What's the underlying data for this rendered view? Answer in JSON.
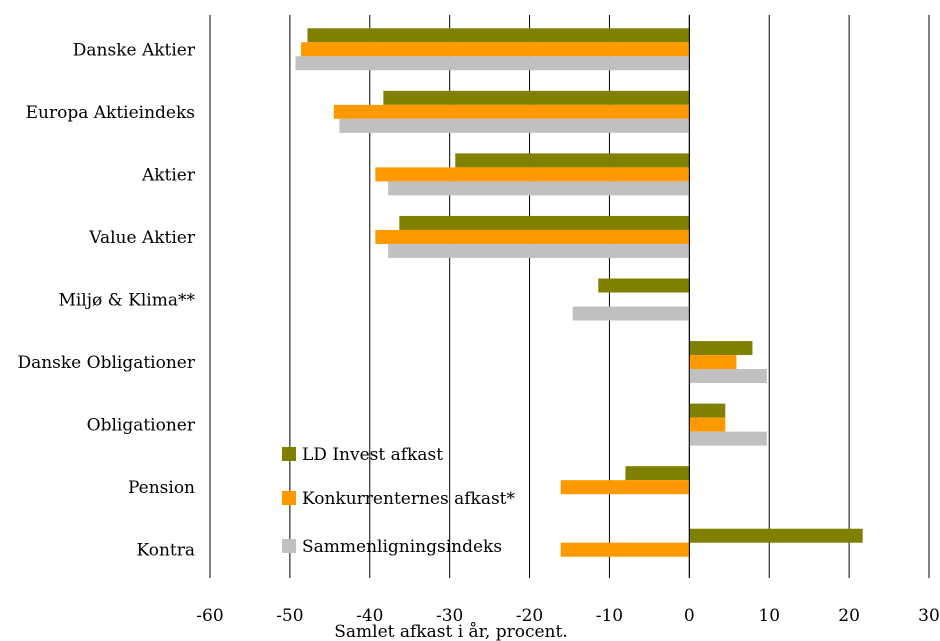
{
  "chart_data": {
    "type": "bar",
    "orientation": "horizontal",
    "categories": [
      "Danske Aktier",
      "Europa Aktieindeks",
      "Aktier",
      "Value Aktier",
      "Miljø & Klima**",
      "Danske Obligationer",
      "Obligationer",
      "Pension",
      "Kontra"
    ],
    "series": [
      {
        "name": "LD Invest afkast",
        "color": "#808000",
        "values": [
          -47.8,
          -38.3,
          -29.3,
          -36.3,
          -11.4,
          7.9,
          4.5,
          -8.0,
          21.7
        ]
      },
      {
        "name": "Konkurrenternes afkast*",
        "color": "#FF9900",
        "values": [
          -48.6,
          -44.5,
          -39.3,
          -39.3,
          null,
          5.9,
          4.5,
          -16.1,
          -16.1
        ]
      },
      {
        "name": "Sammenligningsindeks",
        "color": "#C0C0C0",
        "values": [
          -49.3,
          -43.8,
          -37.7,
          -37.7,
          -14.6,
          9.7,
          9.7,
          null,
          null
        ]
      }
    ],
    "xlabel": "Samlet afkast i år, procent.",
    "xlim": [
      -60,
      30
    ],
    "xticks": [
      -60,
      -50,
      -40,
      -30,
      -20,
      -10,
      0,
      10,
      20,
      30
    ],
    "grid": "vertical",
    "legend": "bottom-center"
  }
}
